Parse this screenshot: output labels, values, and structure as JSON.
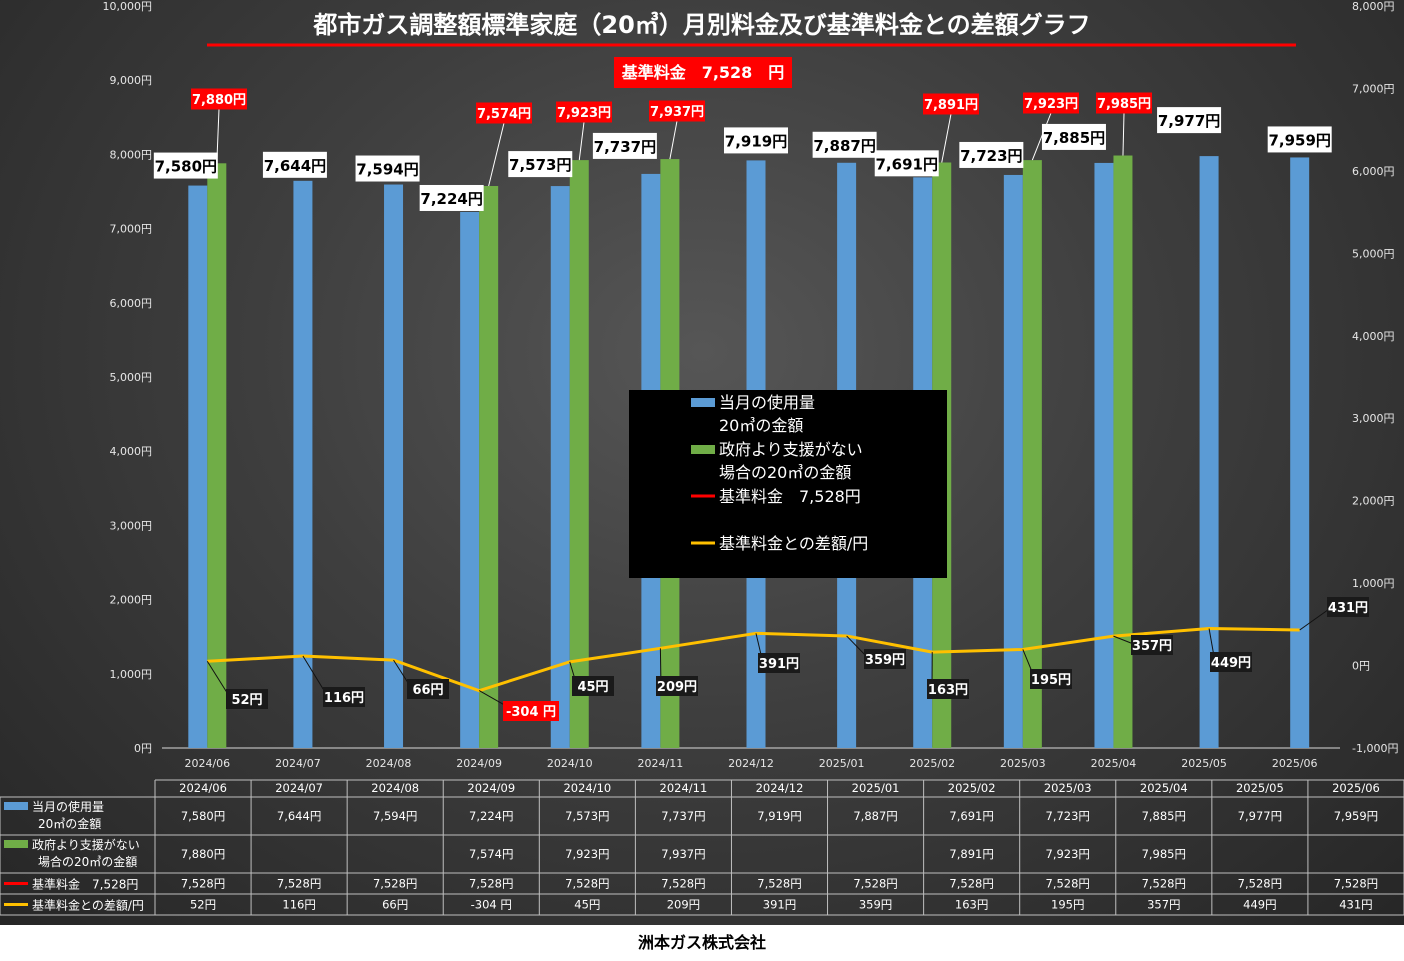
{
  "chart_data": {
    "type": "bar",
    "title": "都市ガス調整額標準家庭（20㎥）月別料金及び基準料金との差額グラフ",
    "standard_badge": "基準料金　7,528　円",
    "categories": [
      "2024/06",
      "2024/07",
      "2024/08",
      "2024/09",
      "2024/10",
      "2024/11",
      "2024/12",
      "2025/01",
      "2025/02",
      "2025/03",
      "2025/04",
      "2025/05",
      "2025/06"
    ],
    "ylim_left": [
      0,
      10000
    ],
    "ylim_right": [
      -1000,
      8000
    ],
    "y_ticks_left": [
      "0円",
      "1,000円",
      "2,000円",
      "3,000円",
      "4,000円",
      "5,000円",
      "6,000円",
      "7,000円",
      "8,000円",
      "9,000円",
      "10,000円"
    ],
    "y_ticks_right": [
      "-1,000円",
      "0円",
      "1,000円",
      "2,000円",
      "3,000円",
      "4,000円",
      "5,000円",
      "6,000円",
      "7,000円",
      "8,000円"
    ],
    "series": [
      {
        "name": "当月の使用量20㎥の金額",
        "legend_lines": [
          "当月の使用量",
          "20㎥の金額"
        ],
        "color": "#5b9bd5",
        "values": [
          7580,
          7644,
          7594,
          7224,
          7573,
          7737,
          7919,
          7887,
          7691,
          7723,
          7885,
          7977,
          7959
        ],
        "labels": [
          "7,580円",
          "7,644円",
          "7,594円",
          "7,224円",
          "7,573円",
          "7,737円",
          "7,919円",
          "7,887円",
          "7,691円",
          "7,723円",
          "7,885円",
          "7,977円",
          "7,959円"
        ]
      },
      {
        "name": "政府より支援がない場合の20㎥の金額",
        "legend_lines": [
          "政府より支援がない",
          "場合の20㎥の金額"
        ],
        "color": "#70ad47",
        "values": [
          7880,
          null,
          null,
          7574,
          7923,
          7937,
          null,
          null,
          7891,
          7923,
          7985,
          null,
          null
        ],
        "labels": [
          "7,880円",
          "",
          "",
          "7,574円",
          "7,923円",
          "7,937円",
          "",
          "",
          "7,891円",
          "7,923円",
          "7,985円",
          "",
          ""
        ]
      },
      {
        "name": "基準料金　7,528円",
        "legend_lines": [
          "基準料金　7,528円"
        ],
        "color": "#ff0000",
        "values": [
          7528,
          7528,
          7528,
          7528,
          7528,
          7528,
          7528,
          7528,
          7528,
          7528,
          7528,
          7528,
          7528
        ],
        "labels": [
          "7,528円",
          "7,528円",
          "7,528円",
          "7,528円",
          "7,528円",
          "7,528円",
          "7,528円",
          "7,528円",
          "7,528円",
          "7,528円",
          "7,528円",
          "7,528円",
          "7,528円"
        ]
      },
      {
        "name": "基準料金との差額/円",
        "legend_lines": [
          "基準料金との差額/円"
        ],
        "color": "#ffc000",
        "axis": "right",
        "values": [
          52,
          116,
          66,
          -304,
          45,
          209,
          391,
          359,
          163,
          195,
          357,
          449,
          431
        ],
        "labels": [
          "52円",
          "116円",
          "66円",
          "-304 円",
          "45円",
          "209円",
          "391円",
          "359円",
          "163円",
          "195円",
          "357円",
          "449円",
          "431円"
        ]
      }
    ],
    "table_series_labels": [
      [
        "当月の使用量",
        "20㎥の金額"
      ],
      [
        "政府より支援がない",
        "場合の20㎥の金額"
      ],
      [
        "基準料金　7,528円"
      ],
      [
        "基準料金との差額/円"
      ]
    ]
  },
  "footer": "洲本ガス株式会社",
  "colors": {
    "background_dark": "#2b2b2b",
    "label_red": "#ff0000",
    "legend_bg": "#000000",
    "title_underline": "#ff0000"
  }
}
